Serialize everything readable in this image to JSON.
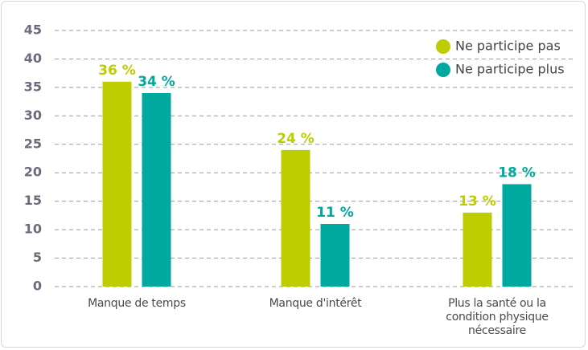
{
  "chart_data": {
    "type": "bar",
    "categories": [
      "Manque de temps",
      "Manque d'intérêt",
      "Plus la santé ou la condition physique nécessaire"
    ],
    "series": [
      {
        "name": "Ne participe pas",
        "color": "#bccd00",
        "values": [
          36,
          24,
          13
        ],
        "value_labels": [
          "36 %",
          "24 %",
          "13 %"
        ]
      },
      {
        "name": "Ne participe plus",
        "color": "#00a99d",
        "values": [
          34,
          11,
          18
        ],
        "value_labels": [
          "34 %",
          "11 %",
          "18 %"
        ]
      }
    ],
    "ylim": [
      0,
      45
    ],
    "yticks": [
      0,
      5,
      10,
      15,
      20,
      25,
      30,
      35,
      40,
      45
    ],
    "grid": true,
    "legend": "top-right"
  }
}
